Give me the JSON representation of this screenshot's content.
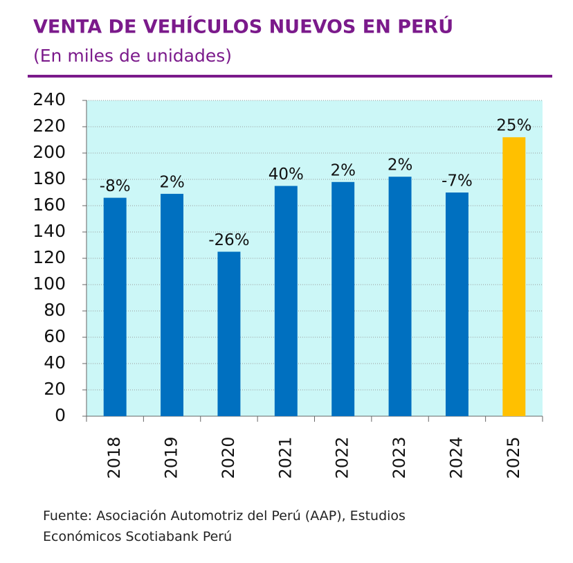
{
  "chart_data": {
    "type": "bar",
    "title": "VENTA DE VEHÍCULOS NUEVOS EN PERÚ",
    "subtitle": "(En miles de unidades)",
    "categories": [
      "2018",
      "2019",
      "2020",
      "2021",
      "2022",
      "2023",
      "2024",
      "2025"
    ],
    "values": [
      166,
      169,
      125,
      175,
      178,
      182,
      170,
      212
    ],
    "colors": [
      "#0070c0",
      "#0070c0",
      "#0070c0",
      "#0070c0",
      "#0070c0",
      "#0070c0",
      "#0070c0",
      "#ffc000"
    ],
    "growth_labels": [
      "-8%",
      "2%",
      "-26%",
      "40%",
      "2%",
      "2%",
      "-7%",
      "25%"
    ],
    "ylim": [
      0,
      240
    ],
    "yticks": [
      0,
      20,
      40,
      60,
      80,
      100,
      120,
      140,
      160,
      180,
      200,
      220,
      240
    ],
    "grid": true,
    "source": "Fuente: Asociación Automotriz del Perú (AAP), Estudios Económicos Scotiabank Perú"
  }
}
